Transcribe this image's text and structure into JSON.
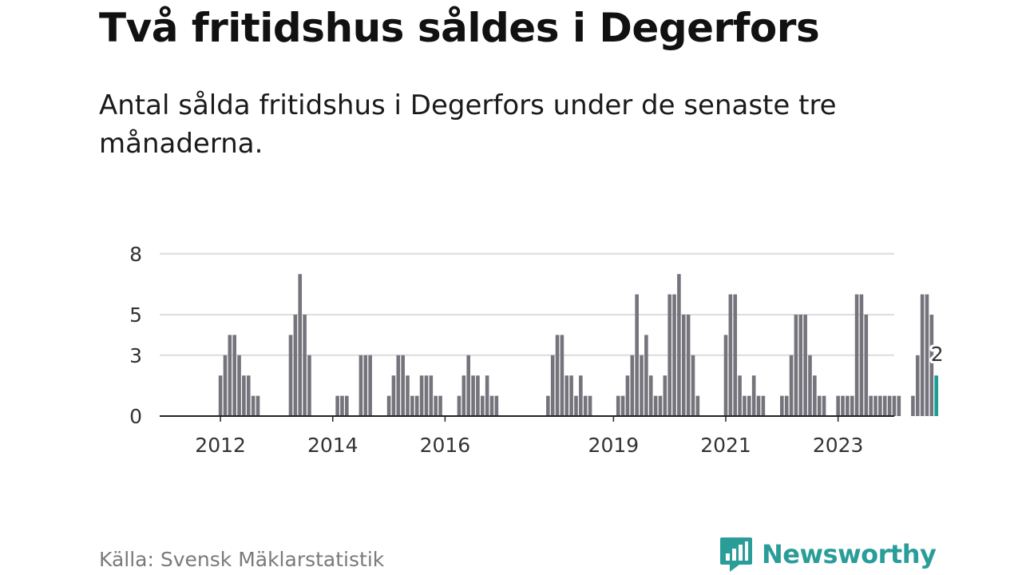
{
  "title": "Två fritidshus såldes i Degerfors",
  "subtitle": "Antal sålda fritidshus i Degerfors under de senaste tre månaderna.",
  "source": "Källa: Svensk Mäklarstatistik",
  "brand": {
    "name": "Newsworthy",
    "icon": "newsworthy-logo-icon",
    "color": "#2a9d99"
  },
  "chart_data": {
    "type": "bar",
    "x_start": "2011-01",
    "frequency": "monthly",
    "values": [
      0,
      0,
      0,
      0,
      0,
      0,
      0,
      0,
      0,
      0,
      0,
      0,
      2,
      3,
      4,
      4,
      3,
      2,
      2,
      1,
      1,
      0,
      0,
      0,
      0,
      0,
      0,
      4,
      5,
      7,
      5,
      3,
      0,
      0,
      0,
      0,
      0,
      1,
      1,
      1,
      0,
      0,
      3,
      3,
      3,
      0,
      0,
      0,
      1,
      2,
      3,
      3,
      2,
      1,
      1,
      2,
      2,
      2,
      1,
      1,
      0,
      0,
      0,
      1,
      2,
      3,
      2,
      2,
      1,
      2,
      1,
      1,
      0,
      0,
      0,
      0,
      0,
      0,
      0,
      0,
      0,
      0,
      1,
      3,
      4,
      4,
      2,
      2,
      1,
      2,
      1,
      1,
      0,
      0,
      0,
      0,
      0,
      1,
      1,
      2,
      3,
      6,
      3,
      4,
      2,
      1,
      1,
      2,
      6,
      6,
      7,
      5,
      5,
      3,
      1,
      0,
      0,
      0,
      0,
      0,
      4,
      6,
      6,
      2,
      1,
      1,
      2,
      1,
      1,
      0,
      0,
      0,
      1,
      1,
      3,
      5,
      5,
      5,
      3,
      2,
      1,
      1,
      0,
      0,
      1,
      1,
      1,
      1,
      6,
      6,
      5,
      1,
      1,
      1,
      1,
      1,
      1,
      1,
      0,
      0,
      1,
      3,
      6,
      6,
      5,
      2
    ],
    "highlight": {
      "index": 165,
      "label": "2",
      "color": "#1a9c93"
    },
    "bar_color": "#75747c",
    "ylim": [
      0,
      9
    ],
    "yticks": [
      0,
      3,
      5,
      8
    ],
    "xticks": [
      "2012",
      "2014",
      "2016",
      "2019",
      "2021",
      "2023"
    ],
    "grid": true,
    "xlabel": "",
    "ylabel": ""
  }
}
